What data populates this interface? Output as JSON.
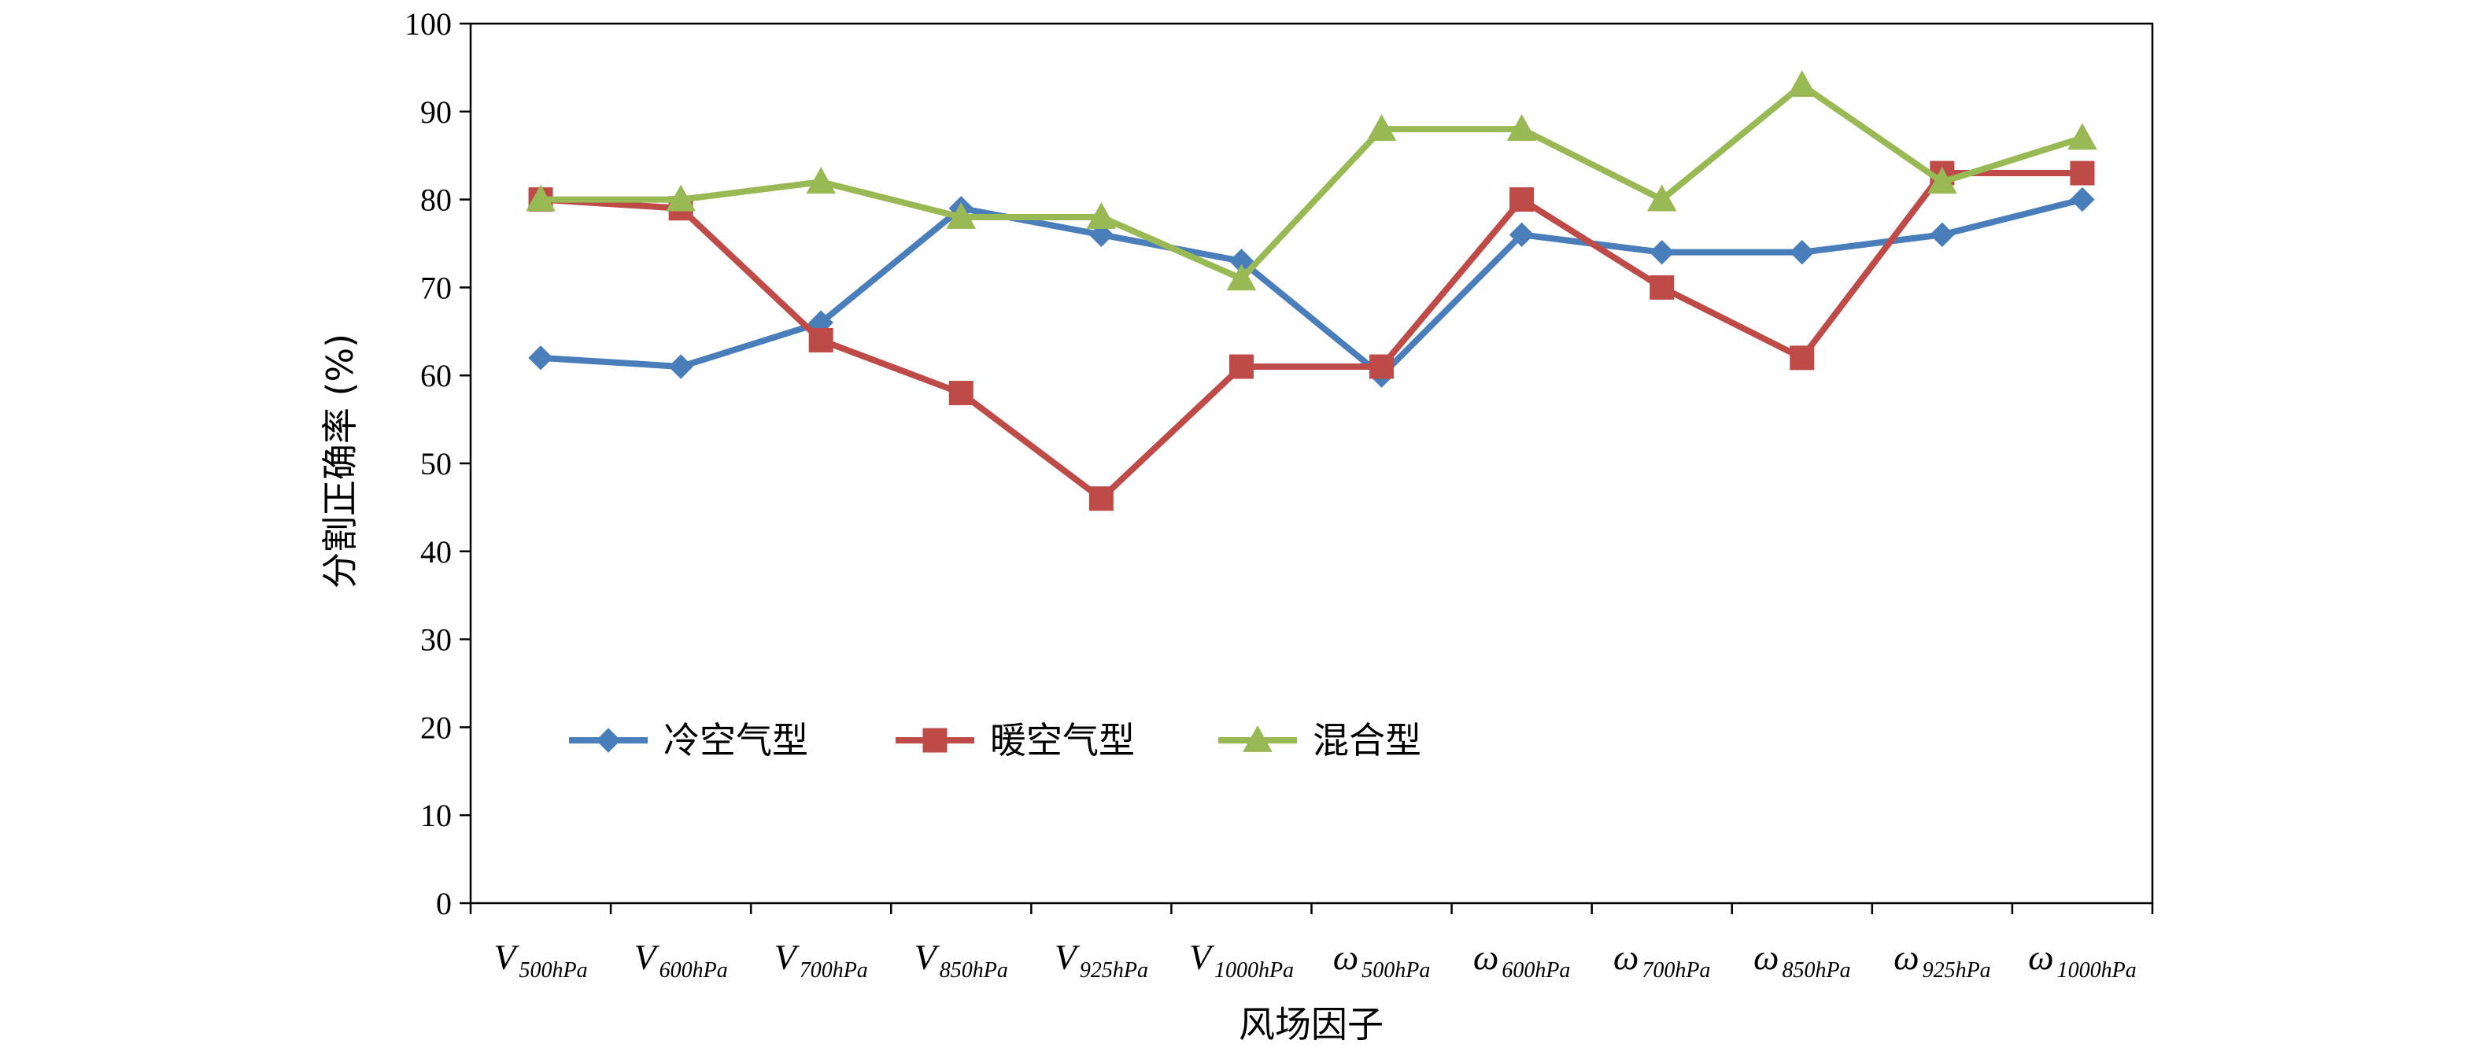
{
  "chart_data": {
    "type": "line",
    "xlabel": "风场因子",
    "ylabel": "分割正确率 (%)",
    "ylim": [
      0,
      100
    ],
    "yticks": [
      "0",
      "10",
      "20",
      "30",
      "40",
      "50",
      "60",
      "70",
      "80",
      "90",
      "100"
    ],
    "categories": [
      {
        "main": "V",
        "sub": "500hPa"
      },
      {
        "main": "V",
        "sub": "600hPa"
      },
      {
        "main": "V",
        "sub": "700hPa"
      },
      {
        "main": "V",
        "sub": "850hPa"
      },
      {
        "main": "V",
        "sub": "925hPa"
      },
      {
        "main": "V",
        "sub": "1000hPa"
      },
      {
        "main": "ω",
        "sub": "500hPa"
      },
      {
        "main": "ω",
        "sub": "600hPa"
      },
      {
        "main": "ω",
        "sub": "700hPa"
      },
      {
        "main": "ω",
        "sub": "850hPa"
      },
      {
        "main": "ω",
        "sub": "925hPa"
      },
      {
        "main": "ω",
        "sub": "1000hPa"
      }
    ],
    "series": [
      {
        "name": "冷空气型",
        "color": "#4a7ebb",
        "marker": "diamond",
        "values": [
          62,
          61,
          66,
          79,
          76,
          73,
          60,
          76,
          74,
          74,
          76,
          80
        ]
      },
      {
        "name": "暖空气型",
        "color": "#be4b48",
        "marker": "square",
        "values": [
          80,
          79,
          64,
          58,
          46,
          61,
          61,
          80,
          70,
          62,
          83,
          83
        ]
      },
      {
        "name": "混合型",
        "color": "#98b954",
        "marker": "triangle",
        "values": [
          80,
          80,
          82,
          78,
          78,
          71,
          88,
          88,
          80,
          93,
          82,
          87
        ]
      }
    ],
    "legend": "inside-lower-left",
    "grid": false
  }
}
